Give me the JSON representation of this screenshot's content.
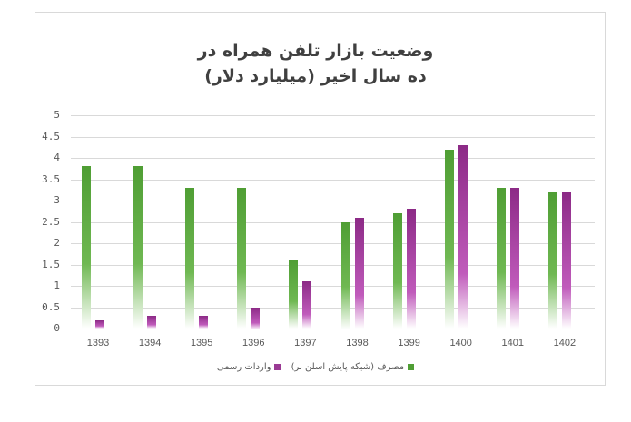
{
  "chart_data": {
    "type": "bar",
    "title": "وضعیت بازار تلفن همراه در ده سال اخیر (میلیارد دلار)",
    "title_lines": [
      "وضعیت بازار تلفن همراه در",
      "ده سال اخیر (میلیارد دلار)"
    ],
    "categories": [
      "1393",
      "1394",
      "1395",
      "1396",
      "1397",
      "1398",
      "1399",
      "1400",
      "1401",
      "1402"
    ],
    "series": [
      {
        "name": "مصرف (شبکه پایش اسلن بر)",
        "color": "#4f9e34",
        "values": [
          3.8,
          3.8,
          3.3,
          3.3,
          1.6,
          2.5,
          2.7,
          4.2,
          3.3,
          3.2
        ]
      },
      {
        "name": "واردات رسمی",
        "color": "#9a3a94",
        "values": [
          0.2,
          0.3,
          0.3,
          0.5,
          1.1,
          2.6,
          2.8,
          4.3,
          3.3,
          3.2
        ]
      }
    ],
    "xlabel": "",
    "ylabel": "",
    "ylim": [
      0,
      5
    ],
    "yticks": [
      "0",
      "0.5",
      "1",
      "1.5",
      "2",
      "2.5",
      "3",
      "3.5",
      "4",
      "4.5",
      "5"
    ],
    "grid": true,
    "legend_position": "bottom"
  }
}
